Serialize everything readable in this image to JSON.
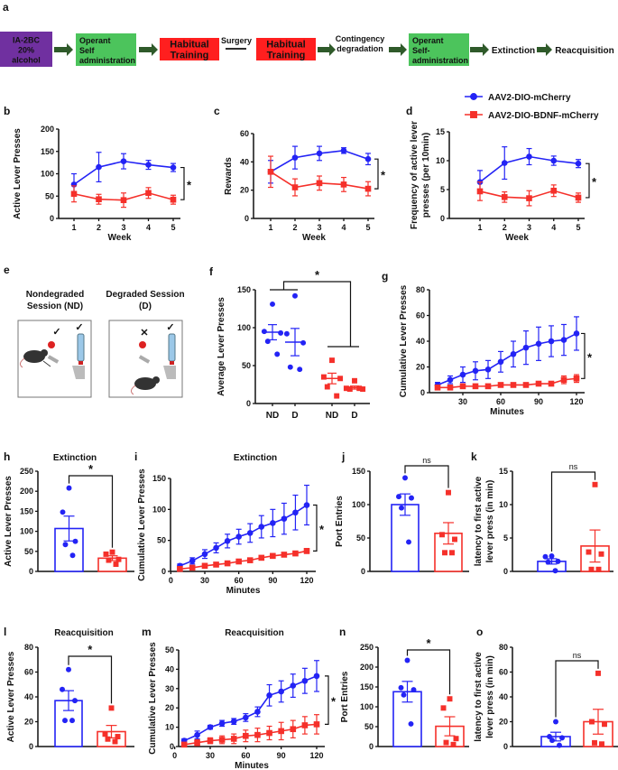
{
  "flow": {
    "letter": "a",
    "arrow_color": "#2f5a2a",
    "steps": [
      {
        "lines": [
          "IA-2BC",
          "20%",
          "alcohol"
        ],
        "color": "#7030a0"
      },
      {
        "lines": [
          "Operant",
          "Self",
          "administration"
        ],
        "color": "#4cc45c"
      },
      {
        "lines": [
          "Habitual",
          "Training"
        ],
        "color": "#ff1f1f"
      },
      {
        "lines": [
          "Surgery"
        ]
      },
      {
        "lines": [
          "Habitual",
          "Training"
        ],
        "color": "#ff1f1f"
      },
      {
        "lines": [
          "Contingency",
          "degradation"
        ]
      },
      {
        "lines": [
          "Operant",
          "Self-",
          "administration"
        ],
        "color": "#4cc45c"
      },
      {
        "lines": [
          "Extinction"
        ]
      },
      {
        "lines": [
          "Reacquisition"
        ]
      }
    ]
  },
  "legend": [
    {
      "label": "AAV2-DIO-mCherry",
      "color": "#2323f5",
      "marker": "circle"
    },
    {
      "label": "AAV2-DIO-BDNF-mCherry",
      "color": "#f5302a",
      "marker": "square"
    }
  ],
  "illustration": {
    "letter": "e",
    "nondegraded": [
      "Nondegraded",
      "Session (ND)"
    ],
    "degraded": [
      "Degraded Session",
      "(D)"
    ]
  },
  "chart_data": [
    {
      "panel": "b",
      "type": "line",
      "xlabel": "Week",
      "ylabel": [
        "Active Lever Presses"
      ],
      "ylim": [
        0,
        200
      ],
      "yticks": [
        0,
        50,
        100,
        150,
        200
      ],
      "xticks": [
        1,
        2,
        3,
        4,
        5
      ],
      "significance": "*",
      "series": [
        {
          "name": "AAV2-DIO-mCherry",
          "color": "#2323f5",
          "marker": "circle",
          "x": [
            1,
            2,
            3,
            4,
            5
          ],
          "y": [
            76,
            115,
            128,
            120,
            114
          ],
          "err": [
            24,
            33,
            17,
            10,
            9
          ]
        },
        {
          "name": "AAV2-DIO-BDNF-mCherry",
          "color": "#f5302a",
          "marker": "square",
          "x": [
            1,
            2,
            3,
            4,
            5
          ],
          "y": [
            55,
            43,
            41,
            57,
            42
          ],
          "err": [
            18,
            11,
            16,
            12,
            10
          ]
        }
      ]
    },
    {
      "panel": "c",
      "type": "line",
      "xlabel": "Week",
      "ylabel": [
        "Rewards"
      ],
      "ylim": [
        0,
        60
      ],
      "yticks": [
        0,
        20,
        40,
        60
      ],
      "xticks": [
        1,
        2,
        3,
        4,
        5
      ],
      "significance": "*",
      "series": [
        {
          "name": "AAV2-DIO-mCherry",
          "color": "#2323f5",
          "marker": "circle",
          "x": [
            1,
            2,
            3,
            4,
            5
          ],
          "y": [
            33,
            43,
            46,
            48,
            42
          ],
          "err": [
            8,
            8,
            5,
            2,
            4
          ]
        },
        {
          "name": "AAV2-DIO-BDNF-mCherry",
          "color": "#f5302a",
          "marker": "square",
          "x": [
            1,
            2,
            3,
            4,
            5
          ],
          "y": [
            33,
            22,
            25,
            24,
            21
          ],
          "err": [
            11,
            6,
            5,
            5,
            5
          ]
        }
      ]
    },
    {
      "panel": "d",
      "type": "line",
      "xlabel": "Week",
      "ylabel": [
        "Frequency of active lever",
        "presses (per 10min)"
      ],
      "ylim": [
        0,
        15
      ],
      "yticks": [
        0,
        5,
        10,
        15
      ],
      "xticks": [
        1,
        2,
        3,
        4,
        5
      ],
      "significance": "*",
      "series": [
        {
          "name": "AAV2-DIO-mCherry",
          "color": "#2323f5",
          "marker": "circle",
          "x": [
            1,
            2,
            3,
            4,
            5
          ],
          "y": [
            6.3,
            9.6,
            10.7,
            10.0,
            9.5
          ],
          "err": [
            2.0,
            2.8,
            1.4,
            0.8,
            0.7
          ]
        },
        {
          "name": "AAV2-DIO-BDNF-mCherry",
          "color": "#f5302a",
          "marker": "square",
          "x": [
            1,
            2,
            3,
            4,
            5
          ],
          "y": [
            4.7,
            3.7,
            3.5,
            4.8,
            3.6
          ],
          "err": [
            1.6,
            0.9,
            1.3,
            1.0,
            0.8
          ]
        }
      ]
    },
    {
      "panel": "f",
      "type": "dot",
      "ylabel": [
        "Average Lever Presses"
      ],
      "ylim": [
        0,
        150
      ],
      "yticks": [
        0,
        50,
        100,
        150
      ],
      "categories": [
        "ND",
        "D",
        "ND",
        "D"
      ],
      "significance": "*",
      "groups": [
        {
          "color": "#2323f5",
          "marker": "circle",
          "points": [
            131,
            95,
            93,
            82,
            65
          ],
          "mean": 94,
          "sem": 10
        },
        {
          "color": "#2323f5",
          "marker": "circle",
          "points": [
            142,
            92,
            80,
            48,
            45
          ],
          "mean": 81,
          "sem": 18
        },
        {
          "color": "#f5302a",
          "marker": "square",
          "points": [
            57,
            35,
            33,
            22,
            10
          ],
          "mean": 33,
          "sem": 7
        },
        {
          "color": "#f5302a",
          "marker": "square",
          "points": [
            30,
            20,
            19,
            19,
            20
          ],
          "mean": 21,
          "sem": 2
        }
      ]
    },
    {
      "panel": "g",
      "type": "line",
      "xlabel": "Minutes",
      "ylabel": [
        "Cumulative Lever Presses"
      ],
      "ylim": [
        0,
        80
      ],
      "yticks": [
        0,
        20,
        40,
        60,
        80
      ],
      "xticks": [
        30,
        60,
        90,
        120
      ],
      "significance": "*",
      "series": [
        {
          "name": "AAV2-DIO-mCherry",
          "color": "#2323f5",
          "marker": "circle",
          "x": [
            10,
            20,
            30,
            40,
            50,
            60,
            70,
            80,
            90,
            100,
            110,
            120
          ],
          "y": [
            6,
            10,
            14,
            17,
            18,
            24,
            30,
            35,
            38,
            40,
            41,
            46
          ],
          "err": [
            2,
            3,
            6,
            7,
            7,
            8,
            10,
            13,
            13,
            12,
            12,
            13
          ]
        },
        {
          "name": "AAV2-DIO-BDNF-mCherry",
          "color": "#f5302a",
          "marker": "square",
          "x": [
            10,
            20,
            30,
            40,
            50,
            60,
            70,
            80,
            90,
            100,
            110,
            120
          ],
          "y": [
            4,
            4,
            5,
            5,
            5,
            6,
            6,
            6,
            7,
            7,
            10,
            11
          ],
          "err": [
            1,
            1,
            1,
            1,
            1,
            1,
            1,
            1,
            1,
            1,
            3,
            3
          ]
        }
      ]
    },
    {
      "panel": "h",
      "type": "bar",
      "title": "Extinction",
      "ylabel": [
        "Active Lever Presses"
      ],
      "ylim": [
        0,
        250
      ],
      "yticks": [
        0,
        50,
        100,
        150,
        200,
        250
      ],
      "significance": "*",
      "groups": [
        {
          "color": "#2323f5",
          "marker": "circle",
          "points": [
            208,
            148,
            75,
            67,
            40
          ],
          "mean": 107,
          "sem": 31
        },
        {
          "color": "#f5302a",
          "marker": "square",
          "points": [
            48,
            43,
            30,
            28,
            18
          ],
          "mean": 33,
          "sem": 6
        }
      ]
    },
    {
      "panel": "i",
      "type": "line",
      "title": "Extinction",
      "xlabel": "Minutes",
      "ylabel": [
        "Cumulative Lever Presses"
      ],
      "ylim": [
        0,
        150
      ],
      "yticks": [
        0,
        50,
        100,
        150
      ],
      "xticks": [
        0,
        30,
        60,
        90,
        120
      ],
      "significance": "*",
      "series": [
        {
          "name": "AAV2-DIO-mCherry",
          "color": "#2323f5",
          "marker": "circle",
          "x": [
            8,
            19,
            30,
            40,
            50,
            60,
            70,
            80,
            90,
            100,
            110,
            120
          ],
          "y": [
            9,
            17,
            28,
            38,
            49,
            56,
            62,
            72,
            78,
            85,
            95,
            107
          ],
          "err": [
            3,
            5,
            7,
            8,
            11,
            12,
            15,
            18,
            22,
            25,
            28,
            32
          ]
        },
        {
          "name": "AAV2-DIO-BDNF-mCherry",
          "color": "#f5302a",
          "marker": "square",
          "x": [
            8,
            19,
            30,
            40,
            50,
            60,
            70,
            80,
            90,
            100,
            110,
            120
          ],
          "y": [
            4,
            6,
            9,
            11,
            13,
            16,
            18,
            22,
            25,
            27,
            29,
            33
          ],
          "err": [
            1,
            1,
            2,
            2,
            2,
            3,
            3,
            3,
            3,
            3,
            3,
            4
          ]
        }
      ]
    },
    {
      "panel": "j",
      "type": "bar",
      "ylabel": [
        "Port Entries"
      ],
      "ylim": [
        0,
        150
      ],
      "yticks": [
        0,
        50,
        100,
        150
      ],
      "significance": "ns",
      "groups": [
        {
          "color": "#2323f5",
          "marker": "circle",
          "points": [
            140,
            112,
            110,
            95,
            44
          ],
          "mean": 100,
          "sem": 16
        },
        {
          "color": "#f5302a",
          "marker": "square",
          "points": [
            118,
            55,
            48,
            28,
            28
          ],
          "mean": 57,
          "sem": 16
        }
      ]
    },
    {
      "panel": "k",
      "type": "bar",
      "ylabel": [
        "latency to first active",
        "lever press (in min)"
      ],
      "ylim": [
        0,
        15
      ],
      "yticks": [
        0,
        5,
        10,
        15
      ],
      "significance": "ns",
      "groups": [
        {
          "color": "#2323f5",
          "marker": "circle",
          "points": [
            2.3,
            2.2,
            1.5,
            1.4,
            0.1
          ],
          "mean": 1.5,
          "sem": 0.4
        },
        {
          "color": "#f5302a",
          "marker": "square",
          "points": [
            13,
            2.9,
            2.6,
            0.3,
            0.3
          ],
          "mean": 3.8,
          "sem": 2.4
        }
      ]
    },
    {
      "panel": "l",
      "type": "bar",
      "title": "Reacquisition",
      "ylabel": [
        "Active Lever Presses"
      ],
      "ylim": [
        0,
        80
      ],
      "yticks": [
        0,
        20,
        40,
        60,
        80
      ],
      "significance": "*",
      "groups": [
        {
          "color": "#2323f5",
          "marker": "circle",
          "points": [
            62,
            46,
            37,
            21,
            21
          ],
          "mean": 37,
          "sem": 8
        },
        {
          "color": "#f5302a",
          "marker": "square",
          "points": [
            31,
            10,
            8,
            6,
            4
          ],
          "mean": 12,
          "sem": 5
        }
      ]
    },
    {
      "panel": "m",
      "type": "line",
      "title": "Reacquisition",
      "xlabel": "Minutes",
      "ylabel": [
        "Cumulative Lever Presses"
      ],
      "ylim": [
        0,
        50
      ],
      "yticks": [
        0,
        10,
        20,
        30,
        40,
        50
      ],
      "xticks": [
        0,
        30,
        60,
        90,
        120
      ],
      "significance": "*",
      "series": [
        {
          "name": "AAV2-DIO-mCherry",
          "color": "#2323f5",
          "marker": "circle",
          "x": [
            8,
            19,
            30,
            40,
            50,
            60,
            70,
            80,
            90,
            100,
            110,
            120
          ],
          "y": [
            3,
            6,
            10,
            12,
            13,
            15,
            18,
            26.5,
            28.5,
            31.5,
            34,
            36.5
          ],
          "err": [
            1,
            2,
            1,
            1.5,
            1.5,
            2,
            2.5,
            5.5,
            5.5,
            6,
            6.5,
            8
          ]
        },
        {
          "name": "AAV2-DIO-BDNF-mCherry",
          "color": "#f5302a",
          "marker": "square",
          "x": [
            8,
            19,
            30,
            40,
            50,
            60,
            70,
            80,
            90,
            100,
            110,
            120
          ],
          "y": [
            1,
            2,
            3,
            3.5,
            4,
            5.5,
            6,
            7,
            8,
            9,
            11,
            11.5
          ],
          "err": [
            0.5,
            1.5,
            1.5,
            2,
            2.5,
            3,
            3.5,
            3.5,
            4.5,
            4.5,
            4.5,
            5
          ]
        }
      ]
    },
    {
      "panel": "n",
      "type": "bar",
      "ylabel": [
        "Port Entries"
      ],
      "ylim": [
        0,
        250
      ],
      "yticks": [
        0,
        50,
        100,
        150,
        200,
        250
      ],
      "significance": "*",
      "groups": [
        {
          "color": "#2323f5",
          "marker": "circle",
          "points": [
            217,
            148,
            143,
            130,
            57
          ],
          "mean": 138,
          "sem": 26
        },
        {
          "color": "#f5302a",
          "marker": "square",
          "points": [
            120,
            97,
            20,
            10,
            5
          ],
          "mean": 51,
          "sem": 24
        }
      ]
    },
    {
      "panel": "o",
      "type": "bar",
      "ylabel": [
        "latency to first active",
        "lever press (in min)"
      ],
      "ylim": [
        0,
        80
      ],
      "yticks": [
        0,
        20,
        40,
        60,
        80
      ],
      "significance": "ns",
      "groups": [
        {
          "color": "#2323f5",
          "marker": "circle",
          "points": [
            20,
            8,
            7,
            5,
            1
          ],
          "mean": 8,
          "sem": 3.5
        },
        {
          "color": "#f5302a",
          "marker": "square",
          "points": [
            59,
            20,
            18,
            3,
            2
          ],
          "mean": 20,
          "sem": 10
        }
      ]
    }
  ]
}
